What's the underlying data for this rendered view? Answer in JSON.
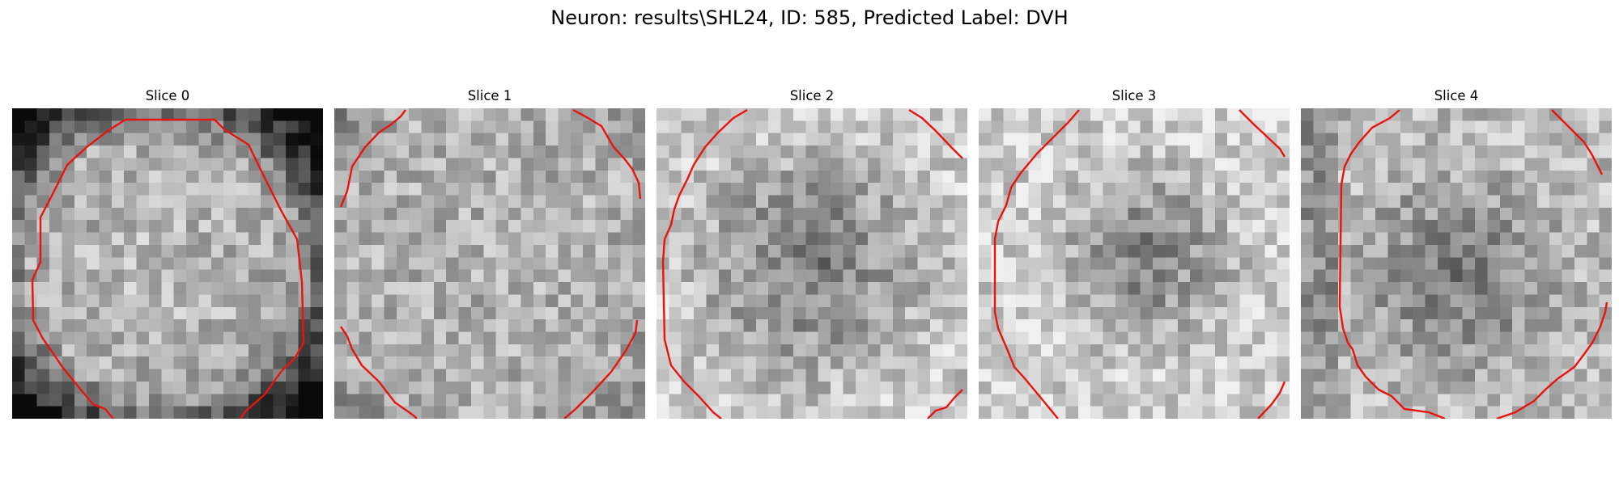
{
  "title": "Neuron: results\\SHL24, ID: 585, Predicted Label: DVH",
  "colors": {
    "contour": "#e8140f",
    "colormap": "gray"
  },
  "slices": [
    {
      "label": "Slice 0"
    },
    {
      "label": "Slice 1"
    },
    {
      "label": "Slice 2"
    },
    {
      "label": "Slice 3"
    },
    {
      "label": "Slice 4"
    }
  ]
}
